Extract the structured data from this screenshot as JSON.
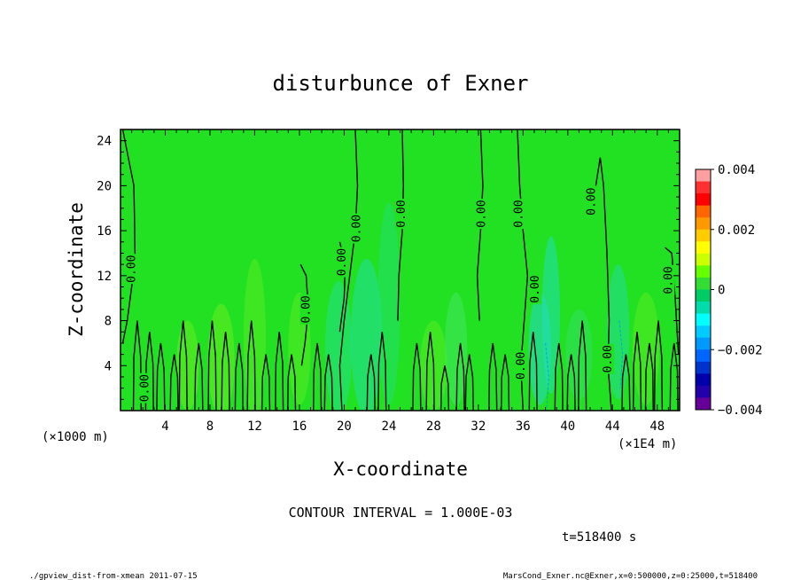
{
  "chart_data": {
    "type": "heatmap",
    "title": "disturbunce of Exner",
    "xlabel": "X-coordinate",
    "ylabel": "Z-coordinate",
    "x_unit_left": "(×1000 m)",
    "x_unit_right": "(×1E4 m)",
    "xlim": [
      0,
      50
    ],
    "ylim": [
      0,
      25
    ],
    "x_ticks": [
      4,
      8,
      12,
      16,
      20,
      24,
      28,
      32,
      36,
      40,
      44,
      48
    ],
    "y_ticks": [
      4,
      8,
      12,
      16,
      20,
      24
    ],
    "colorbar": {
      "range": [
        -0.004,
        0.004
      ],
      "tick_labels": [
        "0.004",
        "0.002",
        "0",
        "−0.002",
        "−0.004"
      ],
      "tick_values": [
        0.004,
        0.002,
        0,
        -0.002,
        -0.004
      ],
      "colors": [
        "#ffa0a0",
        "#ff3030",
        "#ff0000",
        "#ff6600",
        "#ff9900",
        "#ffcc00",
        "#ffff00",
        "#ccff00",
        "#66ff00",
        "#33dd33",
        "#00cc66",
        "#00ddaa",
        "#00ffff",
        "#00ccff",
        "#0099ff",
        "#0066ff",
        "#0033cc",
        "#0000aa",
        "#2200aa",
        "#660099"
      ]
    },
    "contour_labels": [
      {
        "text": "0.00",
        "x": 1.0,
        "z": 12.6
      },
      {
        "text": "0.00",
        "x": 2.2,
        "z": 2.0
      },
      {
        "text": "0.00",
        "x": 16.6,
        "z": 9.0
      },
      {
        "text": "0.00",
        "x": 19.8,
        "z": 13.2
      },
      {
        "text": "0.00",
        "x": 21.1,
        "z": 16.2
      },
      {
        "text": "0.00",
        "x": 25.1,
        "z": 17.5
      },
      {
        "text": "0.00",
        "x": 32.3,
        "z": 17.5
      },
      {
        "text": "0.00",
        "x": 35.6,
        "z": 17.5
      },
      {
        "text": "0.00",
        "x": 35.8,
        "z": 4.0
      },
      {
        "text": "0.00",
        "x": 37.1,
        "z": 10.8
      },
      {
        "text": "0.00",
        "x": 42.1,
        "z": 18.6
      },
      {
        "text": "0.00",
        "x": 43.6,
        "z": 4.6
      },
      {
        "text": "0.00",
        "x": 49.0,
        "z": 11.6
      }
    ],
    "contour_interval_text": "CONTOUR INTERVAL = 1.000E-03",
    "time_text": "t=518400 s",
    "field_color": "#22e022"
  },
  "footer": {
    "left": "./gpview_dist-from-xmean  2011-07-15",
    "right": "MarsCond_Exner.nc@Exner,x=0:500000,z=0:25000,t=518400"
  }
}
